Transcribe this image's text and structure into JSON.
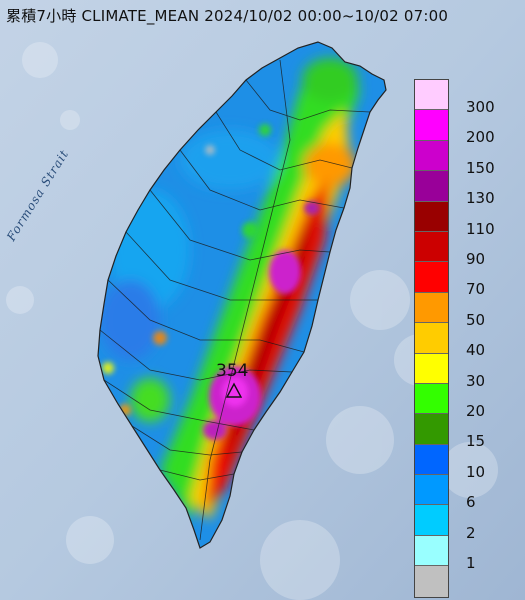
{
  "title": "累積7小時 CLIMATE_MEAN 2024/10/02 00:00~10/02 07:00",
  "sea_label": "Formosa Strait",
  "legend": {
    "levels": [
      {
        "label": "300",
        "color": "#ffccff"
      },
      {
        "label": "200",
        "color": "#ff00ff"
      },
      {
        "label": "150",
        "color": "#cc00cc"
      },
      {
        "label": "130",
        "color": "#990099"
      },
      {
        "label": "110",
        "color": "#990000"
      },
      {
        "label": "90",
        "color": "#cc0000"
      },
      {
        "label": "70",
        "color": "#ff0000"
      },
      {
        "label": "50",
        "color": "#ff9900"
      },
      {
        "label": "40",
        "color": "#ffcc00"
      },
      {
        "label": "30",
        "color": "#ffff00"
      },
      {
        "label": "20",
        "color": "#33ff00"
      },
      {
        "label": "15",
        "color": "#339900"
      },
      {
        "label": "10",
        "color": "#0066ff"
      },
      {
        "label": "6",
        "color": "#0099ff"
      },
      {
        "label": "2",
        "color": "#00ccff"
      },
      {
        "label": "1",
        "color": "#99ffff"
      },
      {
        "label": "",
        "color": "#c0c0c0"
      }
    ]
  },
  "peak": {
    "label": "354"
  }
}
